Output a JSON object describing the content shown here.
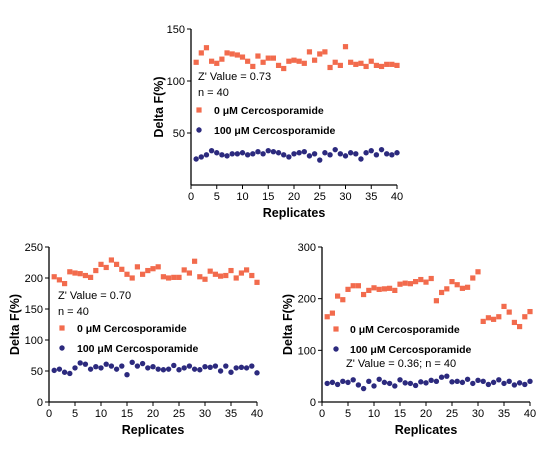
{
  "colors": {
    "series_0uM": "#f26b4d",
    "series_100uM": "#2c2a7e",
    "axis": "#000000"
  },
  "chart_data": [
    {
      "type": "scatter",
      "xlabel": "Replicates",
      "ylabel": "Delta F(%)",
      "xlim": [
        0,
        40
      ],
      "ylim": [
        0,
        150
      ],
      "xticks": [
        "0",
        "5",
        "10",
        "15",
        "20",
        "25",
        "30",
        "35",
        "40"
      ],
      "yticks": [
        "50",
        "100",
        "150"
      ],
      "annotations": [
        "Z' Value = 0.73",
        "n = 40"
      ],
      "legend_position": "middle-left",
      "series": [
        {
          "name": "0 μM Cercosporamide",
          "marker": "square",
          "color": "#f26b4d",
          "x": [
            1,
            2,
            3,
            4,
            5,
            6,
            7,
            8,
            9,
            10,
            11,
            12,
            13,
            14,
            15,
            16,
            17,
            18,
            19,
            20,
            21,
            22,
            23,
            24,
            25,
            26,
            27,
            28,
            29,
            30,
            31,
            32,
            33,
            34,
            35,
            36,
            37,
            38,
            39,
            40
          ],
          "y": [
            118,
            127,
            132,
            119,
            117,
            121,
            127,
            126,
            125,
            123,
            119,
            114,
            124,
            118,
            122,
            122,
            115,
            112,
            119,
            120,
            119,
            117,
            128,
            120,
            126,
            128,
            113,
            118,
            115,
            133,
            118,
            116,
            117,
            114,
            119,
            115,
            114,
            116,
            116,
            115
          ]
        },
        {
          "name": "100 μM Cercosporamide",
          "marker": "circle",
          "color": "#2c2a7e",
          "x": [
            1,
            2,
            3,
            4,
            5,
            6,
            7,
            8,
            9,
            10,
            11,
            12,
            13,
            14,
            15,
            16,
            17,
            18,
            19,
            20,
            21,
            22,
            23,
            24,
            25,
            26,
            27,
            28,
            29,
            30,
            31,
            32,
            33,
            34,
            35,
            36,
            37,
            38,
            39,
            40
          ],
          "y": [
            25,
            27,
            29,
            33,
            31,
            29,
            28,
            30,
            30,
            31,
            29,
            30,
            32,
            30,
            33,
            32,
            31,
            29,
            27,
            30,
            31,
            32,
            28,
            30,
            24,
            31,
            29,
            34,
            30,
            28,
            31,
            30,
            25,
            31,
            33,
            29,
            34,
            30,
            29,
            31
          ]
        }
      ]
    },
    {
      "type": "scatter",
      "xlabel": "Replicates",
      "ylabel": "Delta F(%)",
      "xlim": [
        0,
        40
      ],
      "ylim": [
        0,
        250
      ],
      "xticks": [
        "0",
        "5",
        "10",
        "15",
        "20",
        "25",
        "30",
        "35",
        "40"
      ],
      "yticks": [
        "0",
        "50",
        "100",
        "150",
        "200",
        "250"
      ],
      "annotations": [
        "Z' Value = 0.70",
        "n = 40"
      ],
      "legend_position": "middle-left",
      "series": [
        {
          "name": "0 μM Cercosporamide",
          "marker": "square",
          "color": "#f26b4d",
          "x": [
            1,
            2,
            3,
            4,
            5,
            6,
            7,
            8,
            9,
            10,
            11,
            12,
            13,
            14,
            15,
            16,
            17,
            18,
            19,
            20,
            21,
            22,
            23,
            24,
            25,
            26,
            27,
            28,
            29,
            30,
            31,
            32,
            33,
            34,
            35,
            36,
            37,
            38,
            39,
            40
          ],
          "y": [
            202,
            197,
            191,
            210,
            208,
            207,
            204,
            201,
            212,
            222,
            217,
            229,
            222,
            214,
            206,
            200,
            218,
            206,
            212,
            215,
            218,
            202,
            200,
            201,
            201,
            213,
            208,
            227,
            202,
            198,
            211,
            206,
            203,
            204,
            212,
            200,
            208,
            213,
            204,
            193
          ]
        },
        {
          "name": "100 μM Cercosporamide",
          "marker": "circle",
          "color": "#2c2a7e",
          "x": [
            1,
            2,
            3,
            4,
            5,
            6,
            7,
            8,
            9,
            10,
            11,
            12,
            13,
            14,
            15,
            16,
            17,
            18,
            19,
            20,
            21,
            22,
            23,
            24,
            25,
            26,
            27,
            28,
            29,
            30,
            31,
            32,
            33,
            34,
            35,
            36,
            37,
            38,
            39,
            40
          ],
          "y": [
            51,
            53,
            48,
            46,
            55,
            63,
            61,
            53,
            57,
            55,
            61,
            58,
            53,
            58,
            44,
            64,
            58,
            62,
            55,
            57,
            53,
            52,
            53,
            59,
            52,
            55,
            58,
            53,
            52,
            57,
            56,
            58,
            50,
            58,
            48,
            55,
            56,
            55,
            58,
            47
          ]
        }
      ]
    },
    {
      "type": "scatter",
      "xlabel": "Replicates",
      "ylabel": "Delta F(%)",
      "xlim": [
        0,
        40
      ],
      "ylim": [
        0,
        300
      ],
      "xticks": [
        "0",
        "5",
        "10",
        "15",
        "20",
        "25",
        "30",
        "35",
        "40"
      ],
      "yticks": [
        "0",
        "100",
        "200",
        "300"
      ],
      "annotations": [
        "Z' Value = 0.36; n = 40"
      ],
      "legend_position": "middle-left",
      "series": [
        {
          "name": "0 μM Cercosporamide",
          "marker": "square",
          "color": "#f26b4d",
          "x": [
            1,
            2,
            3,
            4,
            5,
            6,
            7,
            8,
            9,
            10,
            11,
            12,
            13,
            14,
            15,
            16,
            17,
            18,
            19,
            20,
            21,
            22,
            23,
            24,
            25,
            26,
            27,
            28,
            29,
            30,
            31,
            32,
            33,
            34,
            35,
            36,
            37,
            38,
            39,
            40
          ],
          "y": [
            165,
            172,
            205,
            198,
            218,
            225,
            225,
            208,
            216,
            221,
            218,
            219,
            220,
            216,
            228,
            230,
            229,
            233,
            237,
            232,
            239,
            196,
            212,
            219,
            233,
            227,
            220,
            222,
            240,
            252,
            156,
            163,
            160,
            165,
            185,
            174,
            154,
            146,
            165,
            175
          ]
        },
        {
          "name": "100 μM Cercosporamide",
          "marker": "circle",
          "color": "#2c2a7e",
          "x": [
            1,
            2,
            3,
            4,
            5,
            6,
            7,
            8,
            9,
            10,
            11,
            12,
            13,
            14,
            15,
            16,
            17,
            18,
            19,
            20,
            21,
            22,
            23,
            24,
            25,
            26,
            27,
            28,
            29,
            30,
            31,
            32,
            33,
            34,
            35,
            36,
            37,
            38,
            39,
            40
          ],
          "y": [
            36,
            38,
            34,
            40,
            38,
            43,
            33,
            26,
            40,
            31,
            44,
            38,
            36,
            31,
            43,
            37,
            36,
            32,
            39,
            37,
            42,
            40,
            48,
            50,
            39,
            40,
            38,
            44,
            36,
            42,
            40,
            34,
            38,
            43,
            36,
            40,
            33,
            37,
            34,
            40
          ]
        }
      ]
    }
  ]
}
